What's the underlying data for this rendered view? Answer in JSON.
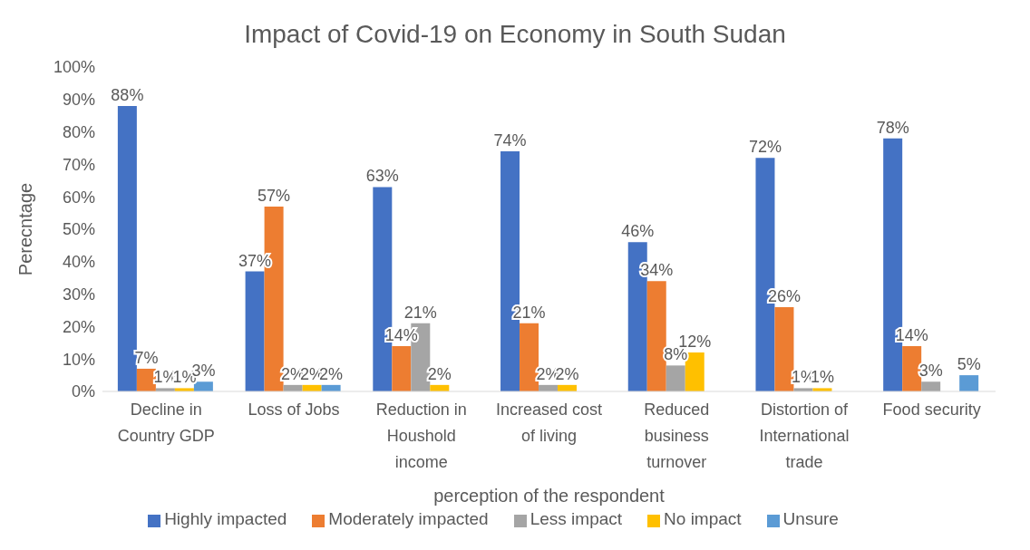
{
  "chart_data": {
    "type": "bar",
    "title": "Impact of Covid-19 on Economy in South Sudan",
    "xlabel": "perception of the respondent",
    "ylabel": "Perecntage",
    "categories": [
      "Decline in Country GDP",
      "Loss of Jobs",
      "Reduction in Houshold income",
      "Increased cost of living",
      "Reduced business turnover",
      "Distortion of International trade",
      "Food security"
    ],
    "series": [
      {
        "name": "Highly impacted",
        "color": "#4472c4",
        "values": [
          88,
          37,
          63,
          74,
          46,
          72,
          78
        ],
        "value_labels": [
          "88%",
          "37%",
          "63%",
          "74%",
          "46%",
          "72%",
          "78%"
        ]
      },
      {
        "name": "Moderately impacted",
        "color": "#ed7d31",
        "values": [
          7,
          57,
          14,
          21,
          34,
          26,
          14
        ],
        "value_labels": [
          "7%",
          "57%",
          "14%",
          "21%",
          "34%",
          "26%",
          "14%"
        ]
      },
      {
        "name": "Less impact",
        "color": "#a5a5a5",
        "values": [
          1,
          2,
          21,
          2,
          8,
          1,
          3
        ],
        "value_labels": [
          "1%",
          "2%",
          "21%",
          "2%",
          "8%",
          "1%",
          "3%"
        ]
      },
      {
        "name": "No impact",
        "color": "#ffc000",
        "values": [
          1,
          2,
          2,
          2,
          12,
          1,
          null
        ],
        "value_labels": [
          "1%",
          "2%",
          "2%",
          "2%",
          "12%",
          "1%",
          null
        ]
      },
      {
        "name": "Unsure",
        "color": "#5b9bd5",
        "values": [
          3,
          2,
          null,
          null,
          null,
          null,
          5
        ],
        "value_labels": [
          "3%",
          "2%",
          null,
          null,
          null,
          null,
          "5%"
        ]
      }
    ],
    "ylim": [
      0,
      100
    ],
    "yticks": [
      {
        "value": 0,
        "label": "0%"
      },
      {
        "value": 10,
        "label": "10%"
      },
      {
        "value": 20,
        "label": "20%"
      },
      {
        "value": 30,
        "label": "30%"
      },
      {
        "value": 40,
        "label": "40%"
      },
      {
        "value": 50,
        "label": "50%"
      },
      {
        "value": 60,
        "label": "60%"
      },
      {
        "value": 70,
        "label": "70%"
      },
      {
        "value": 80,
        "label": "80%"
      },
      {
        "value": 90,
        "label": "90%"
      },
      {
        "value": 100,
        "label": "100%"
      }
    ],
    "grid": false,
    "legend": "bottom"
  }
}
